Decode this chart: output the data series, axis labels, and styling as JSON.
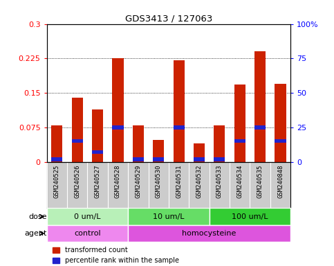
{
  "title": "GDS3413 / 127063",
  "categories": [
    "GSM240525",
    "GSM240526",
    "GSM240527",
    "GSM240528",
    "GSM240529",
    "GSM240530",
    "GSM240531",
    "GSM240532",
    "GSM240533",
    "GSM240534",
    "GSM240535",
    "GSM240848"
  ],
  "red_values": [
    0.079,
    0.14,
    0.115,
    0.226,
    0.079,
    0.048,
    0.221,
    0.04,
    0.079,
    0.168,
    0.24,
    0.17
  ],
  "blue_heights": [
    0.008,
    0.008,
    0.008,
    0.008,
    0.008,
    0.008,
    0.008,
    0.008,
    0.008,
    0.008,
    0.008,
    0.008
  ],
  "blue_bottoms": [
    0.002,
    0.042,
    0.018,
    0.071,
    0.002,
    0.002,
    0.071,
    0.002,
    0.002,
    0.042,
    0.071,
    0.042
  ],
  "ylim_left": [
    0,
    0.3
  ],
  "ylim_right": [
    0,
    100
  ],
  "yticks_left": [
    0,
    0.075,
    0.15,
    0.225,
    0.3
  ],
  "ytick_labels_left": [
    "0",
    "0.075",
    "0.15",
    "0.225",
    "0.3"
  ],
  "yticks_right": [
    0,
    25,
    50,
    75,
    100
  ],
  "ytick_labels_right": [
    "0",
    "25",
    "50",
    "75",
    "100%"
  ],
  "dose_groups": [
    {
      "label": "0 um/L",
      "start": 0,
      "end": 4,
      "color": "#b8f0b8"
    },
    {
      "label": "10 um/L",
      "start": 4,
      "end": 8,
      "color": "#66dd66"
    },
    {
      "label": "100 um/L",
      "start": 8,
      "end": 12,
      "color": "#33cc33"
    }
  ],
  "agent_groups": [
    {
      "label": "control",
      "start": 0,
      "end": 4,
      "color": "#ee88ee"
    },
    {
      "label": "homocysteine",
      "start": 4,
      "end": 12,
      "color": "#dd55dd"
    }
  ],
  "dose_label": "dose",
  "agent_label": "agent",
  "legend_red": "transformed count",
  "legend_blue": "percentile rank within the sample",
  "red_color": "#cc2200",
  "blue_color": "#2222cc",
  "bar_width": 0.55,
  "bg_color": "#ffffff",
  "xticklabel_bg": "#cccccc"
}
